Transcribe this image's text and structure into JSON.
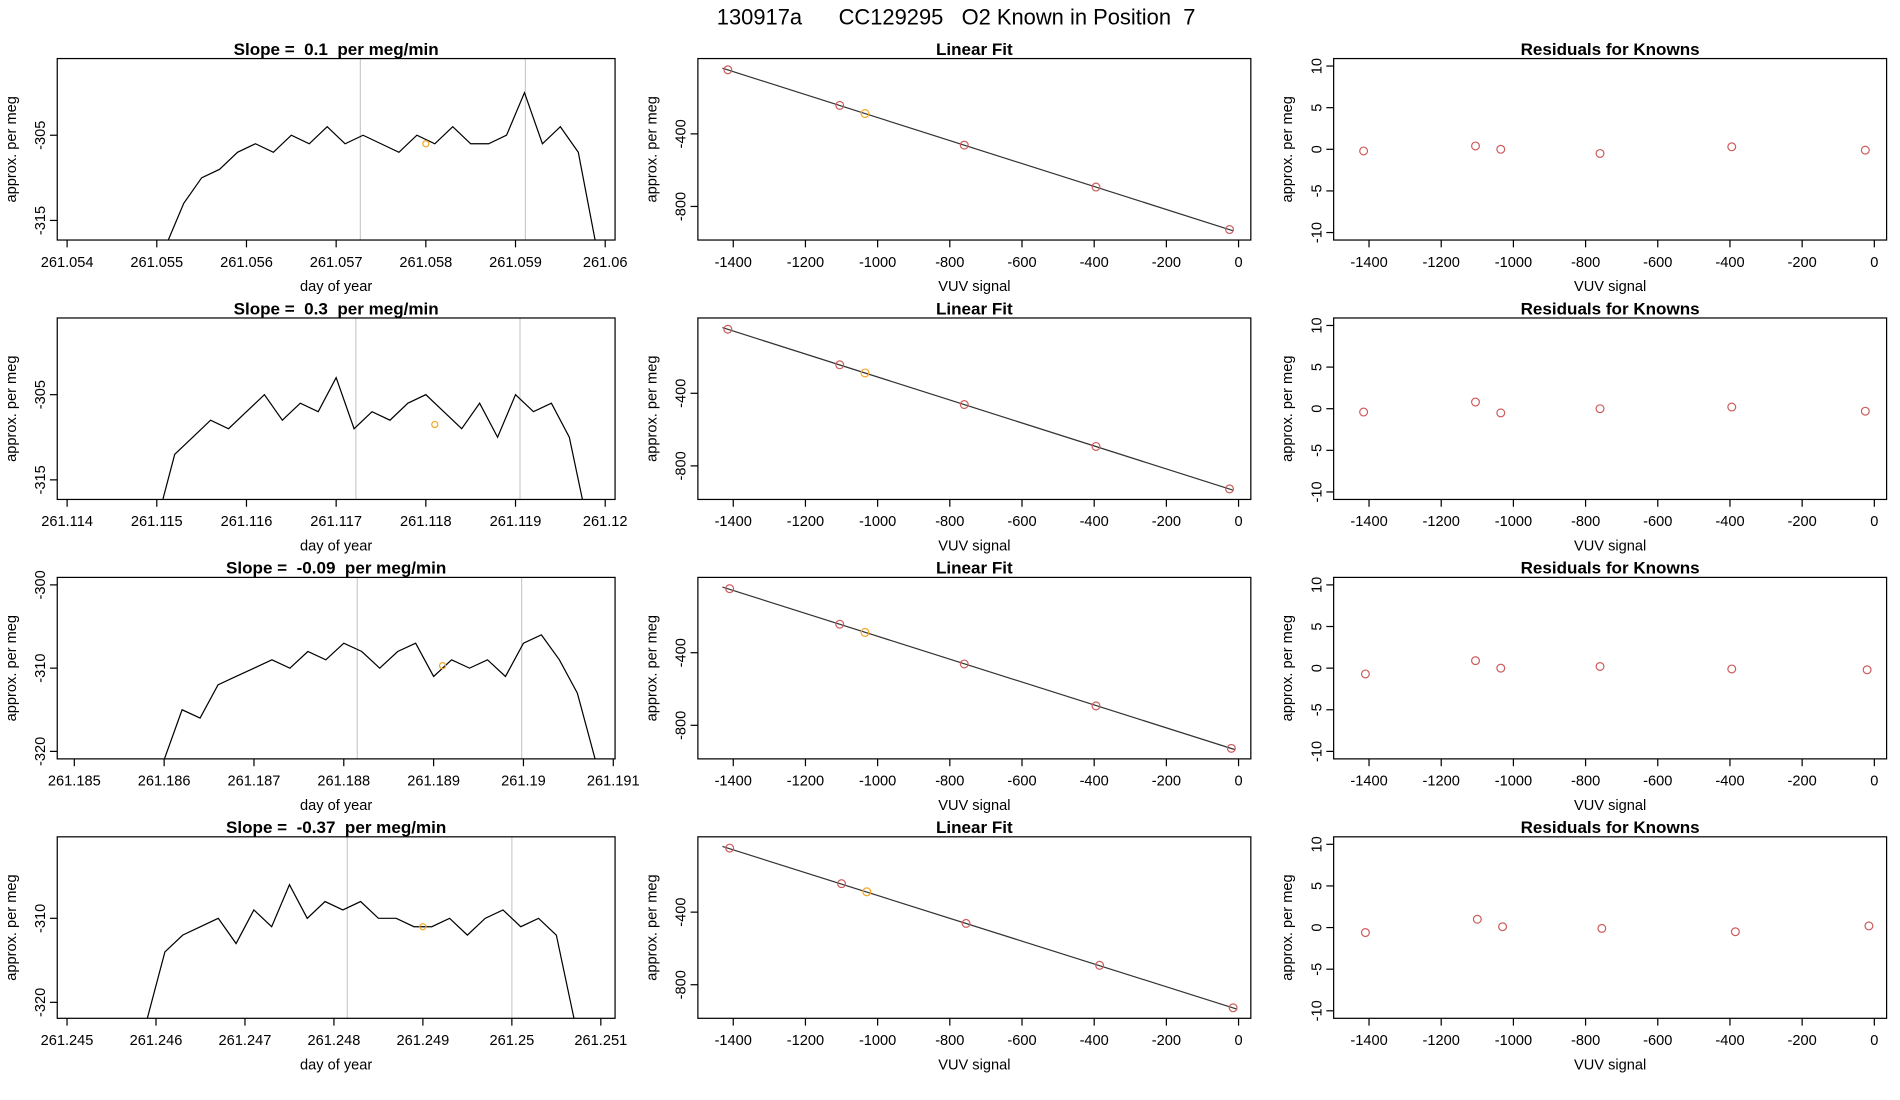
{
  "title": "130917a      CC129295   O2 Known in Position  7",
  "chart_data": [
    {
      "type": "line",
      "title": "Slope =  0.1  per meg/min",
      "xlabel": "day of year",
      "ylabel": "approx. per meg",
      "color": "#000000",
      "x": [
        261.0551,
        261.0553,
        261.0555,
        261.0557,
        261.0559,
        261.0561,
        261.0563,
        261.0565,
        261.0567,
        261.0569,
        261.0571,
        261.0573,
        261.0575,
        261.0577,
        261.0579,
        261.0581,
        261.0583,
        261.0585,
        261.0587,
        261.0589,
        261.0591,
        261.0593,
        261.0595,
        261.0597,
        261.0599
      ],
      "values": [
        -318,
        -313,
        -310,
        -309,
        -307,
        -306,
        -307,
        -305,
        -306,
        -304,
        -306,
        -305,
        -306,
        -307,
        -305,
        -306,
        -304,
        -306,
        -306,
        -305,
        -300,
        -306,
        -304,
        -307,
        -318
      ],
      "xlim": [
        261.05389,
        261.06011
      ],
      "ylim": [
        -317.3,
        -296
      ],
      "xticks": [
        261.054,
        261.055,
        261.056,
        261.057,
        261.058,
        261.059,
        261.06
      ],
      "yticks": [
        -315,
        -305
      ],
      "vlines": [
        261.05727,
        261.05911
      ],
      "vline_color": "#cccccc",
      "highlight": {
        "x": 261.058,
        "y": -306,
        "color": "#f5a623"
      }
    },
    {
      "type": "scatter",
      "title": "Linear Fit",
      "xlabel": "VUV signal",
      "ylabel": "approx. per meg",
      "x": [
        -1415,
        -1105,
        -1035,
        -760,
        -395,
        -25
      ],
      "values": [
        -47,
        -243,
        -288,
        -462,
        -693,
        -927
      ],
      "point_colors": [
        "#cd5c5c",
        "#cd5c5c",
        "#f5a623",
        "#cd5c5c",
        "#cd5c5c",
        "#cd5c5c"
      ],
      "fit_line": {
        "x": [
          -1430,
          -15
        ],
        "y": [
          -38,
          -934
        ]
      },
      "xlim": [
        -1498,
        34
      ],
      "ylim": [
        -985,
        15
      ],
      "xticks": [
        -1400,
        -1200,
        -1000,
        -800,
        -600,
        -400,
        -200,
        0
      ],
      "yticks": [
        -400,
        -800
      ]
    },
    {
      "type": "scatter",
      "title": "Residuals for Knowns",
      "xlabel": "VUV signal",
      "ylabel": "approx. per meg",
      "x": [
        -1415,
        -1105,
        -1035,
        -760,
        -395,
        -25
      ],
      "values": [
        -0.2,
        0.4,
        0,
        -0.5,
        0.3,
        -0.1
      ],
      "point_colors": [
        "#cd5c5c",
        "#cd5c5c",
        "#cd5c5c",
        "#cd5c5c",
        "#cd5c5c",
        "#cd5c5c"
      ],
      "xlim": [
        -1498,
        34
      ],
      "ylim": [
        -10.9,
        10.9
      ],
      "xticks": [
        -1400,
        -1200,
        -1000,
        -800,
        -600,
        -400,
        -200,
        0
      ],
      "yticks": [
        -10,
        -5,
        0,
        5,
        10
      ]
    },
    {
      "type": "line",
      "title": "Slope =  0.3  per meg/min",
      "xlabel": "day of year",
      "ylabel": "approx. per meg",
      "color": "#000000",
      "x": [
        261.115,
        261.1152,
        261.1154,
        261.1156,
        261.1158,
        261.116,
        261.1162,
        261.1164,
        261.1166,
        261.1168,
        261.117,
        261.1172,
        261.1174,
        261.1176,
        261.1178,
        261.118,
        261.1182,
        261.1184,
        261.1186,
        261.1188,
        261.119,
        261.1192,
        261.1194,
        261.1196,
        261.1198
      ],
      "values": [
        -320,
        -312,
        -310,
        -308,
        -309,
        -307,
        -305,
        -308,
        -306,
        -307,
        -303,
        -309,
        -307,
        -308,
        -306,
        -305,
        -307,
        -309,
        -306,
        -310,
        -305,
        -307,
        -306,
        -310,
        -320
      ],
      "xlim": [
        261.11389,
        261.12011
      ],
      "ylim": [
        -317.3,
        -296
      ],
      "xticks": [
        261.114,
        261.115,
        261.116,
        261.117,
        261.118,
        261.119,
        261.12
      ],
      "yticks": [
        -315,
        -305
      ],
      "vlines": [
        261.11722,
        261.11905
      ],
      "vline_color": "#cccccc",
      "highlight": {
        "x": 261.1181,
        "y": -308.5,
        "color": "#f5a623"
      }
    },
    {
      "type": "scatter",
      "title": "Linear Fit",
      "xlabel": "VUV signal",
      "ylabel": "approx. per meg",
      "x": [
        -1415,
        -1105,
        -1035,
        -760,
        -395,
        -25
      ],
      "values": [
        -47,
        -243,
        -288,
        -462,
        -693,
        -927
      ],
      "point_colors": [
        "#cd5c5c",
        "#cd5c5c",
        "#f5a623",
        "#cd5c5c",
        "#cd5c5c",
        "#cd5c5c"
      ],
      "fit_line": {
        "x": [
          -1430,
          -15
        ],
        "y": [
          -38,
          -934
        ]
      },
      "xlim": [
        -1498,
        34
      ],
      "ylim": [
        -985,
        15
      ],
      "xticks": [
        -1400,
        -1200,
        -1000,
        -800,
        -600,
        -400,
        -200,
        0
      ],
      "yticks": [
        -400,
        -800
      ]
    },
    {
      "type": "scatter",
      "title": "Residuals for Knowns",
      "xlabel": "VUV signal",
      "ylabel": "approx. per meg",
      "x": [
        -1415,
        -1105,
        -1035,
        -760,
        -395,
        -25
      ],
      "values": [
        -0.4,
        0.8,
        -0.5,
        0,
        0.2,
        -0.3
      ],
      "point_colors": [
        "#cd5c5c",
        "#cd5c5c",
        "#cd5c5c",
        "#cd5c5c",
        "#cd5c5c",
        "#cd5c5c"
      ],
      "xlim": [
        -1498,
        34
      ],
      "ylim": [
        -10.9,
        10.9
      ],
      "xticks": [
        -1400,
        -1200,
        -1000,
        -800,
        -600,
        -400,
        -200,
        0
      ],
      "yticks": [
        -10,
        -5,
        0,
        5,
        10
      ]
    },
    {
      "type": "line",
      "title": "Slope =  -0.09  per meg/min",
      "xlabel": "day of year",
      "ylabel": "approx. per meg",
      "color": "#000000",
      "x": [
        261.186,
        261.1862,
        261.1864,
        261.1866,
        261.1868,
        261.187,
        261.1872,
        261.1874,
        261.1876,
        261.1878,
        261.188,
        261.1882,
        261.1884,
        261.1886,
        261.1888,
        261.189,
        261.1892,
        261.1894,
        261.1896,
        261.1898,
        261.19,
        261.1902,
        261.1904,
        261.1906,
        261.1908
      ],
      "values": [
        -321,
        -315,
        -316,
        -312,
        -311,
        -310,
        -309,
        -310,
        -308,
        -309,
        -307,
        -308,
        -310,
        -308,
        -307,
        -311,
        -309,
        -310,
        -309,
        -311,
        -307,
        -306,
        -309,
        -313,
        -321
      ],
      "xlim": [
        261.18481,
        261.19102
      ],
      "ylim": [
        -320.9,
        -299.1
      ],
      "xticks": [
        261.185,
        261.186,
        261.187,
        261.188,
        261.189,
        261.19,
        261.191
      ],
      "yticks": [
        -320,
        -310,
        -300
      ],
      "vlines": [
        261.18815,
        261.18998
      ],
      "vline_color": "#cccccc",
      "highlight": {
        "x": 261.1891,
        "y": -309.7,
        "color": "#f5a623"
      }
    },
    {
      "type": "scatter",
      "title": "Linear Fit",
      "xlabel": "VUV signal",
      "ylabel": "approx. per meg",
      "x": [
        -1410,
        -1105,
        -1035,
        -760,
        -395,
        -20
      ],
      "values": [
        -47,
        -243,
        -288,
        -462,
        -693,
        -927
      ],
      "point_colors": [
        "#cd5c5c",
        "#cd5c5c",
        "#f5a623",
        "#cd5c5c",
        "#cd5c5c",
        "#cd5c5c"
      ],
      "fit_line": {
        "x": [
          -1430,
          -10
        ],
        "y": [
          -38,
          -934
        ]
      },
      "xlim": [
        -1498,
        34
      ],
      "ylim": [
        -985,
        15
      ],
      "xticks": [
        -1400,
        -1200,
        -1000,
        -800,
        -600,
        -400,
        -200,
        0
      ],
      "yticks": [
        -400,
        -800
      ]
    },
    {
      "type": "scatter",
      "title": "Residuals for Knowns",
      "xlabel": "VUV signal",
      "ylabel": "approx. per meg",
      "x": [
        -1410,
        -1105,
        -1035,
        -760,
        -395,
        -20
      ],
      "values": [
        -0.7,
        0.9,
        0,
        0.2,
        -0.1,
        -0.2
      ],
      "point_colors": [
        "#cd5c5c",
        "#cd5c5c",
        "#cd5c5c",
        "#cd5c5c",
        "#cd5c5c",
        "#cd5c5c"
      ],
      "xlim": [
        -1498,
        34
      ],
      "ylim": [
        -10.9,
        10.9
      ],
      "xticks": [
        -1400,
        -1200,
        -1000,
        -800,
        -600,
        -400,
        -200,
        0
      ],
      "yticks": [
        -10,
        -5,
        0,
        5,
        10
      ]
    },
    {
      "type": "line",
      "title": "Slope =  -0.37  per meg/min",
      "xlabel": "day of year",
      "ylabel": "approx. per meg",
      "color": "#000000",
      "x": [
        261.2459,
        261.2461,
        261.2463,
        261.2465,
        261.2467,
        261.2469,
        261.2471,
        261.2473,
        261.2475,
        261.2477,
        261.2479,
        261.2481,
        261.2483,
        261.2485,
        261.2487,
        261.2489,
        261.2491,
        261.2493,
        261.2495,
        261.2497,
        261.2499,
        261.2501,
        261.2503,
        261.2505,
        261.2507
      ],
      "values": [
        -322,
        -314,
        -312,
        -311,
        -310,
        -313,
        -309,
        -311,
        -306,
        -310,
        -308,
        -309,
        -308,
        -310,
        -310,
        -311,
        -311,
        -310,
        -312,
        -310,
        -309,
        -311,
        -310,
        -312,
        -322
      ],
      "xlim": [
        261.24489,
        261.25116
      ],
      "ylim": [
        -321.9,
        -300.3
      ],
      "xticks": [
        261.245,
        261.246,
        261.247,
        261.248,
        261.249,
        261.25,
        261.251
      ],
      "yticks": [
        -320,
        -310
      ],
      "vlines": [
        261.24815,
        261.25
      ],
      "vline_color": "#cccccc",
      "highlight": {
        "x": 261.249,
        "y": -311,
        "color": "#f5a623"
      }
    },
    {
      "type": "scatter",
      "title": "Linear Fit",
      "xlabel": "VUV signal",
      "ylabel": "approx. per meg",
      "x": [
        -1410,
        -1100,
        -1030,
        -755,
        -385,
        -15
      ],
      "values": [
        -47,
        -243,
        -288,
        -462,
        -693,
        -927
      ],
      "point_colors": [
        "#cd5c5c",
        "#cd5c5c",
        "#f5a623",
        "#cd5c5c",
        "#cd5c5c",
        "#cd5c5c"
      ],
      "fit_line": {
        "x": [
          -1430,
          -5
        ],
        "y": [
          -38,
          -934
        ]
      },
      "xlim": [
        -1498,
        34
      ],
      "ylim": [
        -985,
        15
      ],
      "xticks": [
        -1400,
        -1200,
        -1000,
        -800,
        -600,
        -400,
        -200,
        0
      ],
      "yticks": [
        -400,
        -800
      ]
    },
    {
      "type": "scatter",
      "title": "Residuals for Knowns",
      "xlabel": "VUV signal",
      "ylabel": "approx. per meg",
      "x": [
        -1410,
        -1100,
        -1030,
        -755,
        -385,
        -15
      ],
      "values": [
        -0.6,
        1.0,
        0.1,
        -0.1,
        -0.5,
        0.2
      ],
      "point_colors": [
        "#cd5c5c",
        "#cd5c5c",
        "#cd5c5c",
        "#cd5c5c",
        "#cd5c5c",
        "#cd5c5c"
      ],
      "xlim": [
        -1498,
        34
      ],
      "ylim": [
        -10.9,
        10.9
      ],
      "xticks": [
        -1400,
        -1200,
        -1000,
        -800,
        -600,
        -400,
        -200,
        0
      ],
      "yticks": [
        -10,
        -5,
        0,
        5,
        10
      ]
    }
  ]
}
